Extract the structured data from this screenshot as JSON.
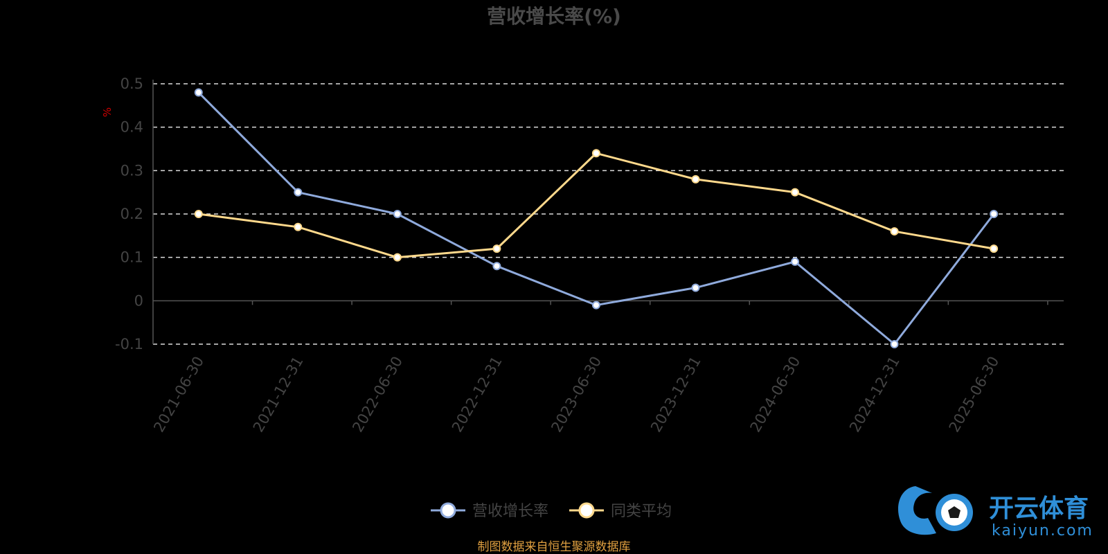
{
  "chart_data": {
    "type": "line",
    "title": "营收增长率(%)",
    "ylabel": "%",
    "xlabel": "",
    "ylim": [
      -0.1,
      0.5
    ],
    "yticks": [
      -0.1,
      0,
      0.1,
      0.2,
      0.3,
      0.4,
      0.5
    ],
    "ytick_labels": [
      "-0.1",
      "0",
      "0.1",
      "0.2",
      "0.3",
      "0.4",
      "0.5"
    ],
    "grid": true,
    "legend_placement": "bottom-center",
    "categories": [
      "2021-06-30",
      "2021-12-31",
      "2022-06-30",
      "2022-12-31",
      "2023-06-30",
      "2023-12-31",
      "2024-06-30",
      "2024-12-31",
      "2025-06-30"
    ],
    "series": [
      {
        "name": "营收增长率",
        "color": "#8faadc",
        "values": [
          0.48,
          0.25,
          0.2,
          0.08,
          -0.01,
          0.03,
          0.09,
          -0.1,
          0.2
        ]
      },
      {
        "name": "同类平均",
        "color": "#ffd98c",
        "values": [
          0.2,
          0.17,
          0.1,
          0.12,
          0.34,
          0.28,
          0.25,
          0.16,
          0.12
        ]
      }
    ]
  },
  "source_note": "制图数据来自恒生聚源数据库",
  "logo": {
    "main": "开云体育",
    "sub": "kaiyun.com"
  }
}
